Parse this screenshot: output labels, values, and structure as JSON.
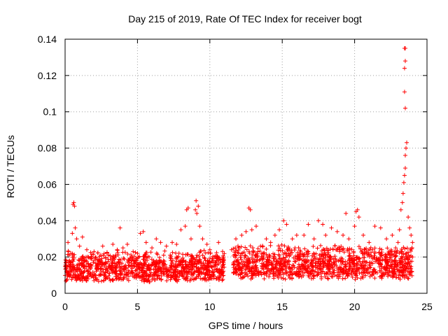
{
  "chart_data": {
    "type": "scatter",
    "title": "Day 215 of 2019, Rate Of TEC Index for receiver bogt",
    "xlabel": "GPS time / hours",
    "ylabel": "ROTI / TECUs",
    "xlim": [
      0,
      25
    ],
    "ylim": [
      0,
      0.14
    ],
    "x_ticks": [
      "0",
      "5",
      "10",
      "15",
      "20",
      "25"
    ],
    "x_tick_values": [
      0,
      5,
      10,
      15,
      20,
      25
    ],
    "y_ticks": [
      "0",
      "0.02",
      "0.04",
      "0.06",
      "0.08",
      "0.1",
      "0.12",
      "0.14"
    ],
    "y_tick_values": [
      0,
      0.02,
      0.04,
      0.06,
      0.08,
      0.1,
      0.12,
      0.14
    ],
    "grid": true,
    "marker": "+",
    "marker_color": "#ff0000",
    "series": [
      {
        "name": "ROTI",
        "points": [
          [
            0.1,
            0.012
          ],
          [
            0.2,
            0.028
          ],
          [
            0.3,
            0.018
          ],
          [
            0.4,
            0.022
          ],
          [
            0.5,
            0.033
          ],
          [
            0.55,
            0.049
          ],
          [
            0.6,
            0.05
          ],
          [
            0.65,
            0.048
          ],
          [
            0.7,
            0.036
          ],
          [
            0.8,
            0.03
          ],
          [
            1.0,
            0.026
          ],
          [
            1.2,
            0.031
          ],
          [
            1.5,
            0.024
          ],
          [
            1.8,
            0.019
          ],
          [
            2.0,
            0.023
          ],
          [
            2.3,
            0.016
          ],
          [
            2.6,
            0.026
          ],
          [
            3.0,
            0.021
          ],
          [
            3.3,
            0.027
          ],
          [
            3.6,
            0.024
          ],
          [
            3.8,
            0.036
          ],
          [
            4.0,
            0.025
          ],
          [
            4.3,
            0.027
          ],
          [
            4.7,
            0.023
          ],
          [
            5.0,
            0.022
          ],
          [
            5.2,
            0.033
          ],
          [
            5.4,
            0.034
          ],
          [
            5.6,
            0.028
          ],
          [
            6.0,
            0.025
          ],
          [
            6.3,
            0.03
          ],
          [
            6.6,
            0.028
          ],
          [
            7.0,
            0.026
          ],
          [
            7.4,
            0.028
          ],
          [
            7.7,
            0.027
          ],
          [
            8.0,
            0.035
          ],
          [
            8.3,
            0.037
          ],
          [
            8.4,
            0.046
          ],
          [
            8.5,
            0.047
          ],
          [
            8.7,
            0.03
          ],
          [
            9.0,
            0.046
          ],
          [
            9.05,
            0.051
          ],
          [
            9.1,
            0.044
          ],
          [
            9.2,
            0.048
          ],
          [
            9.3,
            0.037
          ],
          [
            9.5,
            0.03
          ],
          [
            9.8,
            0.027
          ],
          [
            10.0,
            0.024
          ],
          [
            10.3,
            0.02
          ],
          [
            10.6,
            0.028
          ],
          [
            10.9,
            0.017
          ],
          [
            11.5,
            0.024
          ],
          [
            11.8,
            0.03
          ],
          [
            12.2,
            0.032
          ],
          [
            12.5,
            0.034
          ],
          [
            12.7,
            0.047
          ],
          [
            12.8,
            0.046
          ],
          [
            12.9,
            0.035
          ],
          [
            13.2,
            0.037
          ],
          [
            13.5,
            0.026
          ],
          [
            13.9,
            0.03
          ],
          [
            14.2,
            0.028
          ],
          [
            14.5,
            0.032
          ],
          [
            14.8,
            0.035
          ],
          [
            15.1,
            0.04
          ],
          [
            15.3,
            0.038
          ],
          [
            15.7,
            0.03
          ],
          [
            16.0,
            0.032
          ],
          [
            16.5,
            0.032
          ],
          [
            16.8,
            0.038
          ],
          [
            17.2,
            0.03
          ],
          [
            17.5,
            0.04
          ],
          [
            17.8,
            0.038
          ],
          [
            18.0,
            0.032
          ],
          [
            18.4,
            0.036
          ],
          [
            18.8,
            0.034
          ],
          [
            19.2,
            0.032
          ],
          [
            19.4,
            0.044
          ],
          [
            19.6,
            0.03
          ],
          [
            20.0,
            0.037
          ],
          [
            20.1,
            0.045
          ],
          [
            20.2,
            0.046
          ],
          [
            20.3,
            0.042
          ],
          [
            20.6,
            0.032
          ],
          [
            21.0,
            0.028
          ],
          [
            21.4,
            0.037
          ],
          [
            21.8,
            0.036
          ],
          [
            22.2,
            0.03
          ],
          [
            22.6,
            0.032
          ],
          [
            23.0,
            0.028
          ],
          [
            23.1,
            0.035
          ],
          [
            23.2,
            0.046
          ],
          [
            23.3,
            0.05
          ],
          [
            23.35,
            0.055
          ],
          [
            23.4,
            0.061
          ],
          [
            23.45,
            0.065
          ],
          [
            23.5,
            0.069
          ],
          [
            23.5,
            0.076
          ],
          [
            23.55,
            0.08
          ],
          [
            23.6,
            0.083
          ],
          [
            23.5,
            0.102
          ],
          [
            23.45,
            0.111
          ],
          [
            23.45,
            0.124
          ],
          [
            23.5,
            0.128
          ],
          [
            23.45,
            0.135
          ],
          [
            23.5,
            0.135
          ],
          [
            23.7,
            0.042
          ],
          [
            23.9,
            0.032
          ],
          [
            24.0,
            0.028
          ],
          [
            23.8,
            0.036
          ],
          [
            24.0,
            0.02
          ]
        ],
        "dense_band": [
          {
            "from": 0.0,
            "to": 11.0,
            "ymin": 0.003,
            "ymax": 0.024
          },
          {
            "from": 11.6,
            "to": 24.0,
            "ymin": 0.004,
            "ymax": 0.027
          }
        ]
      }
    ]
  }
}
